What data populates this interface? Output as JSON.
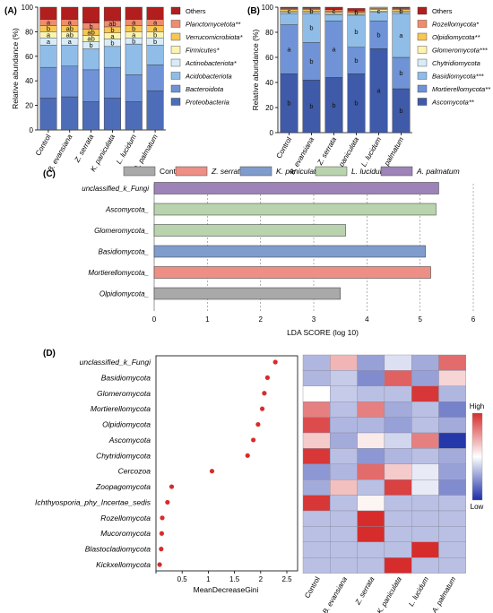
{
  "figure": {
    "panel_labels": [
      "(A)",
      "(B)",
      "(C)",
      "(D)"
    ]
  },
  "chart_data": [
    {
      "panel": "(A)",
      "type": "bar",
      "stacked": true,
      "ylabel": "Relative abundance (%)",
      "xlabel": "",
      "ylim": [
        0,
        100
      ],
      "yticks": [
        0,
        20,
        40,
        60,
        80,
        100
      ],
      "categories": [
        "Control",
        "B. evansiana",
        "Z. serrata",
        "K. paniculata",
        "L. lucidum",
        "A. palmatum"
      ],
      "series": [
        {
          "name": "Proteobacteria",
          "color": "#4e6db8",
          "values": [
            26,
            27,
            23,
            26,
            23,
            32
          ],
          "labels": [
            "",
            "",
            "",
            "",
            "",
            ""
          ]
        },
        {
          "name": "Bacteroidota",
          "color": "#6f93d6",
          "values": [
            25,
            25,
            26,
            25,
            22,
            21
          ],
          "labels": [
            "",
            "",
            "",
            "",
            "",
            ""
          ]
        },
        {
          "name": "Acidobacteriota",
          "color": "#8fbde8",
          "values": [
            18,
            17,
            17,
            17,
            25,
            16
          ],
          "labels": [
            "",
            "",
            "",
            "",
            "",
            ""
          ]
        },
        {
          "name": "Actinobacteriota*",
          "color": "#d8ecf8",
          "values": [
            6,
            6,
            6,
            6,
            5,
            6
          ],
          "labels": [
            "a",
            "a",
            "b",
            "b",
            "b",
            "b"
          ]
        },
        {
          "name": "Firmicutes*",
          "color": "#fbf4b0",
          "values": [
            5,
            5,
            5,
            5,
            5,
            5
          ],
          "labels": [
            "a",
            "ab",
            "ab",
            "a",
            "a",
            "b"
          ]
        },
        {
          "name": "Verrucomicrobiota*",
          "color": "#f7c653",
          "values": [
            5,
            5,
            5,
            5,
            5,
            5
          ],
          "labels": [
            "b",
            "ab",
            "ab",
            "b",
            "b",
            "a"
          ]
        },
        {
          "name": "Planctomycetota**",
          "color": "#ef8c6e",
          "values": [
            5,
            5,
            5,
            5,
            5,
            5
          ],
          "labels": [
            "a",
            "a",
            "b",
            "ab",
            "a",
            "a"
          ]
        },
        {
          "name": "Others",
          "color": "#b21e1e",
          "values": [
            10,
            10,
            13,
            11,
            10,
            10
          ],
          "labels": [
            "",
            "",
            "",
            "",
            "",
            ""
          ]
        }
      ],
      "legend_placement": "right"
    },
    {
      "panel": "(B)",
      "type": "bar",
      "stacked": true,
      "ylabel": "Relative abundance (%)",
      "xlabel": "",
      "ylim": [
        0,
        100
      ],
      "yticks": [
        0,
        20,
        40,
        60,
        80,
        100
      ],
      "categories": [
        "Control",
        "B. evansiana",
        "Z. serrata",
        "K. paniculata",
        "L. lucidum",
        "A. palmatum"
      ],
      "series": [
        {
          "name": "Ascomycota**",
          "color": "#3f5aa8",
          "values": [
            47,
            42,
            44,
            47,
            67,
            35
          ],
          "labels": [
            "b",
            "b",
            "b",
            "b",
            "a",
            "b"
          ]
        },
        {
          "name": "Mortierellomycota**",
          "color": "#6f93d6",
          "values": [
            39,
            30,
            45,
            21,
            22,
            25
          ],
          "labels": [
            "a",
            "b",
            "a",
            "b",
            "b",
            "b"
          ]
        },
        {
          "name": "Basidiomycota***",
          "color": "#8fbde8",
          "values": [
            9,
            23,
            5,
            25,
            7,
            35
          ],
          "labels": [
            "",
            "b",
            "",
            "b",
            "",
            "a"
          ]
        },
        {
          "name": "Chytridiomycota",
          "color": "#d8ecf8",
          "values": [
            1,
            1,
            1,
            1,
            1,
            1
          ],
          "labels": [
            "",
            "",
            "",
            "",
            "",
            ""
          ]
        },
        {
          "name": "Glomeromycota***",
          "color": "#fbf4b0",
          "values": [
            1,
            1,
            1,
            1,
            1,
            1
          ],
          "labels": [
            "",
            "",
            "",
            "",
            "",
            ""
          ]
        },
        {
          "name": "Olpidiomycota**",
          "color": "#f7c653",
          "values": [
            1,
            1,
            1,
            1,
            1,
            1
          ],
          "labels": [
            "",
            "",
            "",
            "",
            "",
            ""
          ]
        },
        {
          "name": "Rozellomycota*",
          "color": "#ef8c6e",
          "values": [
            1,
            1,
            1,
            1,
            1,
            1
          ],
          "labels": [
            "",
            "",
            "",
            "",
            "",
            ""
          ]
        },
        {
          "name": "Others",
          "color": "#b21e1e",
          "values": [
            1,
            1,
            2,
            2,
            0,
            1
          ],
          "labels": [
            "",
            "",
            "",
            "",
            "",
            ""
          ]
        }
      ],
      "top_labels": [
        "c",
        "b",
        "c",
        "b",
        "c",
        "b"
      ],
      "legend_placement": "right"
    },
    {
      "panel": "(C)",
      "type": "bar",
      "orientation": "horizontal",
      "xlabel": "LDA SCORE (log 10)",
      "ylabel": "",
      "xlim": [
        0,
        6
      ],
      "xticks": [
        0,
        1,
        2,
        3,
        4,
        5,
        6
      ],
      "grid": true,
      "legend": [
        {
          "name": "Contol",
          "color": "#a9a9a9"
        },
        {
          "name": "Z. serrata",
          "color": "#ee8f86"
        },
        {
          "name": "K. paniculata",
          "color": "#7f9ccc"
        },
        {
          "name": "L. lucidum",
          "color": "#b8d3ad"
        },
        {
          "name": "A. palmatum",
          "color": "#9d83b8"
        }
      ],
      "legend_placement": "top",
      "categories": [
        "unclassified_k_Fungi",
        "Ascomycota_",
        "Glomeromycota_",
        "Basidiomycota_",
        "Mortierellomycota_",
        "Olpidiomycota_"
      ],
      "values": [
        5.35,
        5.3,
        3.6,
        5.1,
        5.2,
        3.5
      ],
      "groups": [
        "A. palmatum",
        "L. lucidum",
        "L. lucidum",
        "K. paniculata",
        "Z. serrata",
        "Contol"
      ]
    },
    {
      "panel": "(D)",
      "type": "scatter",
      "xlabel": "MeanDecreaseGini",
      "ylabel": "",
      "xlim": [
        0,
        2.5
      ],
      "xticks": [
        0,
        0.5,
        1,
        1.5,
        2,
        2.5
      ],
      "xtick_labels": [
        "0",
        "0.5",
        "1",
        "1.5",
        "2",
        "2.5"
      ],
      "point_color": "#d62c2c",
      "categories": [
        "unclassified_k_Fungi",
        "Basidiomycota",
        "Glomeromycota",
        "Mortierellomycota",
        "Olpidiomycota",
        "Ascomycota",
        "Chytridiomycota",
        "Cercozoa",
        "Zoopagomycota",
        "Ichthyosporia_phy_Incertae_sedis",
        "Rozellomycota",
        "Mucoromycota",
        "Blastocladiomycota",
        "Kickxellomycota"
      ],
      "values": [
        2.28,
        2.13,
        2.07,
        2.03,
        1.95,
        1.86,
        1.75,
        1.07,
        0.3,
        0.22,
        0.12,
        0.11,
        0.1,
        0.07
      ]
    },
    {
      "panel": "(D) heatmap",
      "type": "heatmap",
      "columns": [
        "Control",
        "B. evansiana",
        "Z. serrata",
        "K. paniculata",
        "L. lucidum",
        "A. palmatum"
      ],
      "rows": [
        "unclassified_k_Fungi",
        "Basidiomycota",
        "Glomeromycota",
        "Mortierellomycota",
        "Olpidiomycota",
        "Ascomycota",
        "Chytridiomycota",
        "Cercozoa",
        "Zoopagomycota",
        "Ichthyosporia_phy_Incertae_sedis",
        "Rozellomycota",
        "Mucoromycota",
        "Blastocladiomycota",
        "Kickxellomycota"
      ],
      "scale_min": -1,
      "scale_max": 1,
      "legend_high": "High",
      "legend_low": "Low",
      "low_color": "#1a2ea6",
      "mid_color": "#ffffff",
      "high_color": "#d62c2c",
      "values": [
        [
          -0.35,
          0.35,
          -0.45,
          -0.15,
          -0.4,
          0.7
        ],
        [
          -0.35,
          -0.25,
          -0.55,
          0.75,
          -0.45,
          0.2
        ],
        [
          0.0,
          -0.25,
          -0.3,
          -0.3,
          0.95,
          -0.35
        ],
        [
          0.6,
          -0.3,
          0.6,
          -0.4,
          -0.3,
          -0.6
        ],
        [
          0.85,
          -0.35,
          -0.35,
          -0.45,
          -0.3,
          -0.4
        ],
        [
          0.25,
          -0.4,
          0.1,
          -0.2,
          0.6,
          -0.95
        ],
        [
          0.95,
          -0.3,
          -0.5,
          -0.35,
          -0.3,
          -0.4
        ],
        [
          -0.5,
          -0.35,
          0.7,
          0.25,
          -0.1,
          -0.45
        ],
        [
          -0.4,
          0.3,
          -0.3,
          0.9,
          -0.1,
          -0.55
        ],
        [
          0.95,
          -0.3,
          0.05,
          -0.3,
          -0.3,
          -0.3
        ],
        [
          -0.3,
          -0.3,
          1.0,
          -0.3,
          -0.3,
          -0.3
        ],
        [
          -0.3,
          -0.3,
          1.0,
          -0.3,
          -0.3,
          -0.3
        ],
        [
          -0.3,
          -0.3,
          -0.3,
          -0.3,
          1.0,
          -0.3
        ],
        [
          -0.3,
          -0.3,
          -0.3,
          1.0,
          -0.3,
          -0.3
        ]
      ]
    }
  ]
}
